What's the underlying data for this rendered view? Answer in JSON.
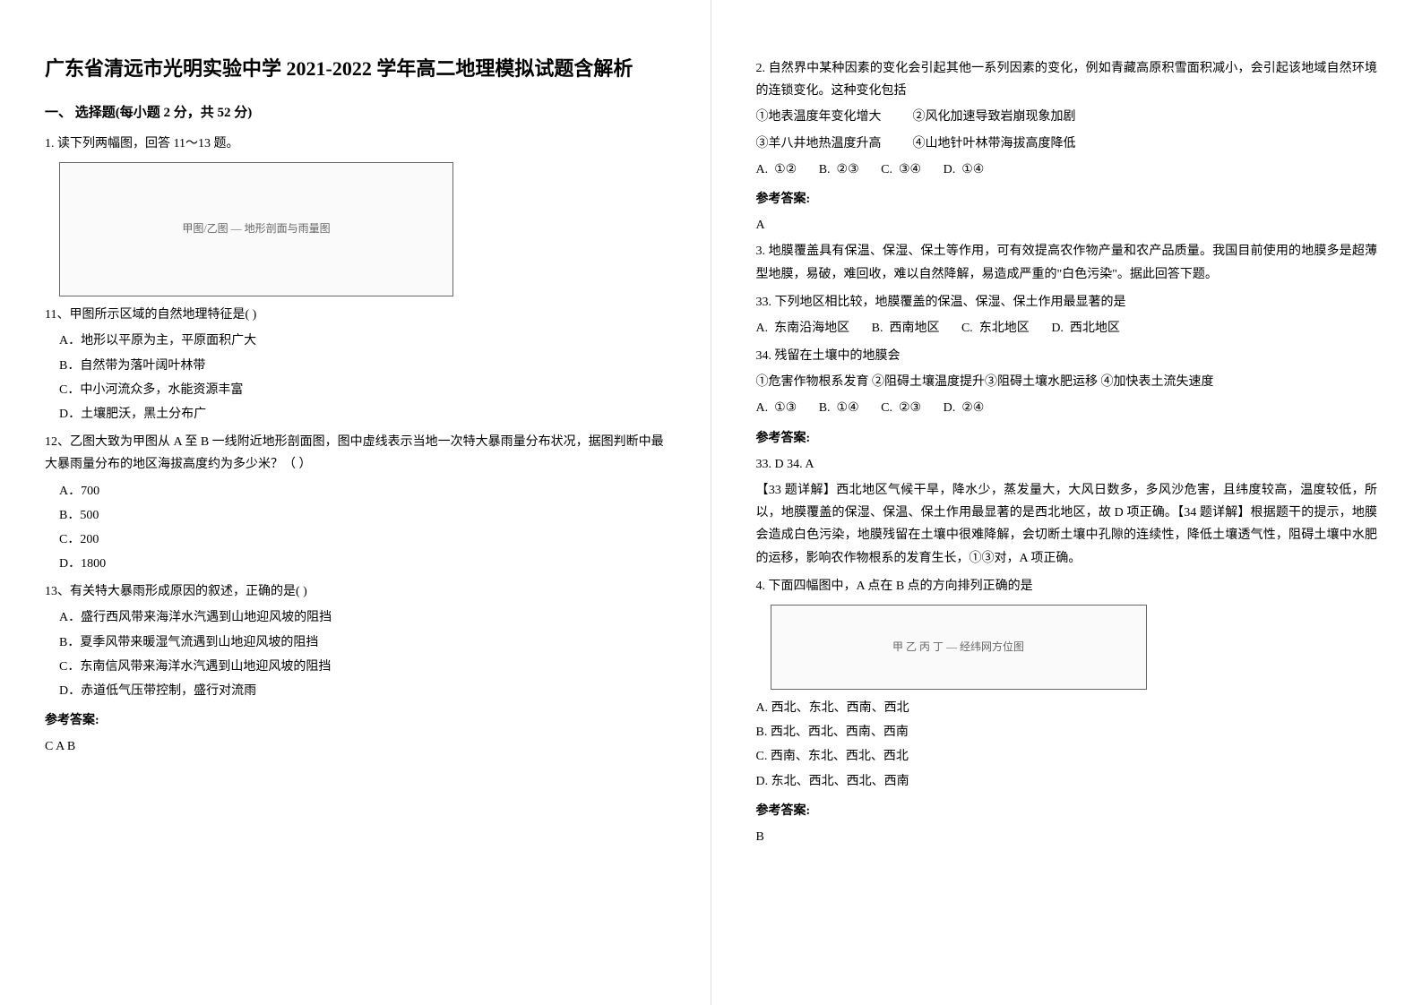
{
  "doc": {
    "title": "广东省清远市光明实验中学 2021-2022 学年高二地理模拟试题含解析",
    "section1_header": "一、 选择题(每小题 2 分，共 52 分)",
    "q1_intro": "1. 读下列两幅图，回答 11～13 题。",
    "figure1_label": "甲图/乙图 — 地形剖面与雨量图",
    "q11": "11、甲图所示区域的自然地理特征是(        )",
    "q11_a": "A．地形以平原为主，平原面积广大",
    "q11_b": "B．自然带为落叶阔叶林带",
    "q11_c": "C．中小河流众多，水能资源丰富",
    "q11_d": "D．土壤肥沃，黑土分布广",
    "q12": "12、乙图大致为甲图从 A 至 B 一线附近地形剖面图，图中虚线表示当地一次特大暴雨量分布状况，据图判断中最大暴雨量分布的地区海拔高度约为多少米？（    ）",
    "q12_a": "A．700",
    "q12_b": "B．500",
    "q12_c": "C．200",
    "q12_d": "D．1800",
    "q13": "13、有关特大暴雨形成原因的叙述，正确的是(        )",
    "q13_a": "A．盛行西风带来海洋水汽遇到山地迎风坡的阻挡",
    "q13_b": "B．夏季风带来暖湿气流遇到山地迎风坡的阻挡",
    "q13_c": "C．东南信风带来海洋水汽遇到山地迎风坡的阻挡",
    "q13_d": "D．赤道低气压带控制，盛行对流雨",
    "answer_label": "参考答案:",
    "ans1": "C  A  B",
    "q2": "2. 自然界中某种因素的变化会引起其他一系列因素的变化，例如青藏高原积雪面积减小，会引起该地域自然环境的连锁变化。这种变化包括",
    "q2_s1": "①地表温度年变化增大",
    "q2_s2": "②风化加速导致岩崩现象加剧",
    "q2_s3": "③羊八井地热温度升高",
    "q2_s4": "④山地针叶林带海拔高度降低",
    "q2_a": "A.  ①②",
    "q2_b": "B.  ②③",
    "q2_c": "C.  ③④",
    "q2_d": "D.  ①④",
    "ans2": "A",
    "q3_intro": "3. 地膜覆盖具有保温、保湿、保土等作用，可有效提高农作物产量和农产品质量。我国目前使用的地膜多是超薄型地膜，易破，难回收，难以自然降解，易造成严重的\"白色污染\"。据此回答下题。",
    "q33": "33.  下列地区相比较，地膜覆盖的保温、保湿、保土作用最显著的是",
    "q33_a": "A.  东南沿海地区",
    "q33_b": "B.  西南地区",
    "q33_c": "C.  东北地区",
    "q33_d": "D.  西北地区",
    "q34": "34.  残留在土壤中的地膜会",
    "q34_s": "①危害作物根系发育  ②阻碍土壤温度提升③阻碍土壤水肥运移  ④加快表土流失速度",
    "q34_a": "A.  ①③",
    "q34_b": "B.  ①④",
    "q34_c": "C.  ②③",
    "q34_d": "D.  ②④",
    "ans3": "33. D        34. A",
    "expl33": "【33 题详解】西北地区气候干旱，降水少，蒸发量大，大风日数多，多风沙危害，且纬度较高，温度较低，所以，地膜覆盖的保湿、保温、保土作用最显著的是西北地区，故 D 项正确。【34 题详解】根据题干的提示，地膜会造成白色污染，地膜残留在土壤中很难降解，会切断土壤中孔隙的连续性，降低土壤透气性，阻碍土壤中水肥的运移，影响农作物根系的发育生长，①③对，A 项正确。",
    "q4": "4. 下面四幅图中，A 点在 B 点的方向排列正确的是",
    "figure2_label": "甲 乙 丙 丁 — 经纬网方位图",
    "q4_a": "A.  西北、东北、西南、西北",
    "q4_b": "B.  西北、西北、西南、西南",
    "q4_c": "C.  西南、东北、西北、西北",
    "q4_d": "D.  东北、西北、西北、西南",
    "ans4": "B"
  }
}
